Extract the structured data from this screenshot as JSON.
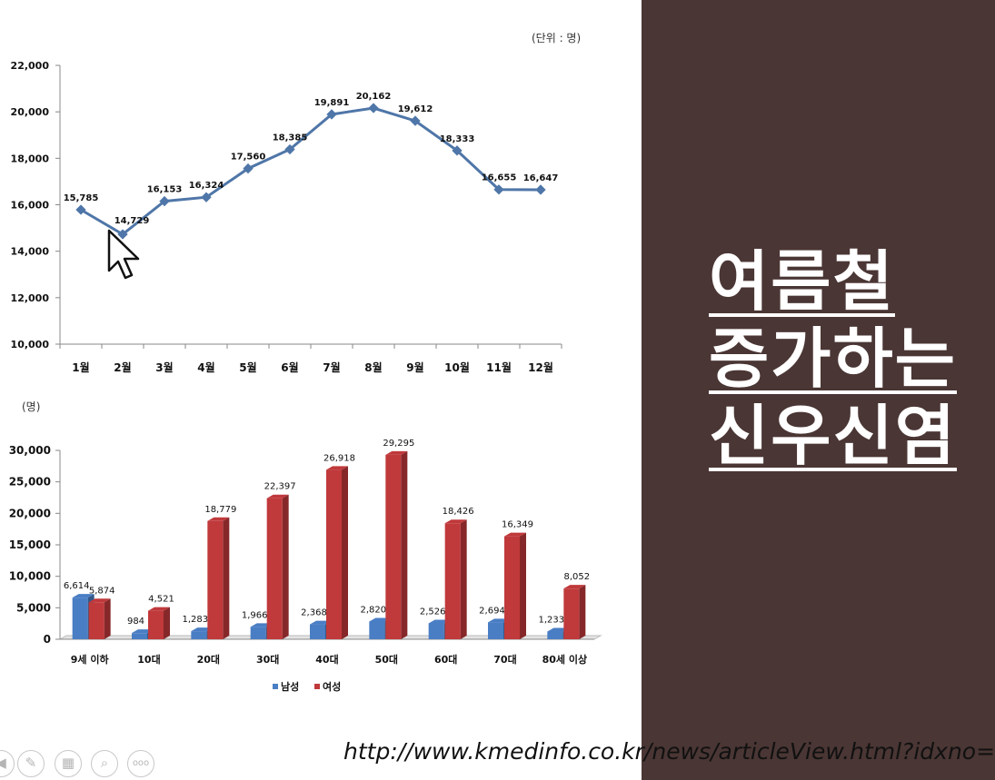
{
  "chart_data": [
    {
      "type": "line",
      "unit_note": "(단위 : 명)",
      "categories": [
        "1월",
        "2월",
        "3월",
        "4월",
        "5월",
        "6월",
        "7월",
        "8월",
        "9월",
        "10월",
        "11월",
        "12월"
      ],
      "series": [
        {
          "values": [
            15785,
            14729,
            16153,
            16324,
            17560,
            18385,
            19891,
            20162,
            19612,
            18333,
            16655,
            16647
          ],
          "labels": [
            "15,785",
            "14,729",
            "16,153",
            "16,324",
            "17,560",
            "18,385",
            "19,891",
            "20,162",
            "19,612",
            "18,333",
            "16,655",
            "16,647"
          ]
        }
      ],
      "ylim": [
        10000,
        22000
      ],
      "yticks": [
        "10,000",
        "12,000",
        "14,000",
        "16,000",
        "18,000",
        "20,000",
        "22,000"
      ],
      "color": "#4f76a8"
    },
    {
      "type": "bar",
      "unit_note": "(명)",
      "categories": [
        "9세 이하",
        "10대",
        "20대",
        "30대",
        "40대",
        "50대",
        "60대",
        "70대",
        "80세 이상"
      ],
      "series": [
        {
          "name": "남성",
          "color": "#4a7ec4",
          "values": [
            6614,
            984,
            1283,
            1966,
            2368,
            2820,
            2526,
            2694,
            1233
          ],
          "labels": [
            "6,614",
            "984",
            "1,283",
            "1,966",
            "2,368",
            "2,820",
            "2,526",
            "2,694",
            "1,233"
          ]
        },
        {
          "name": "여성",
          "color": "#c0393b",
          "values": [
            5874,
            4521,
            18779,
            22397,
            26918,
            29295,
            18426,
            16349,
            8052
          ],
          "labels": [
            "5,874",
            "4,521",
            "18,779",
            "22,397",
            "26,918",
            "29,295",
            "18,426",
            "16,349",
            "8,052"
          ]
        }
      ],
      "ylim": [
        0,
        30000
      ],
      "yticks": [
        "0",
        "5,000",
        "10,000",
        "15,000",
        "20,000",
        "25,000",
        "30,000"
      ],
      "legend_position": "bottom"
    }
  ],
  "headline": {
    "line1": "여름철",
    "line2": "증가하는",
    "line3": "신우신염"
  },
  "source_url": "http://www.kmedinfo.co.kr/news/articleView.html?idxno=",
  "toolbar": {
    "icons": [
      "back-icon",
      "pen-icon",
      "slides-icon",
      "zoom-icon",
      "more-icon"
    ],
    "more_label": "ooo"
  }
}
